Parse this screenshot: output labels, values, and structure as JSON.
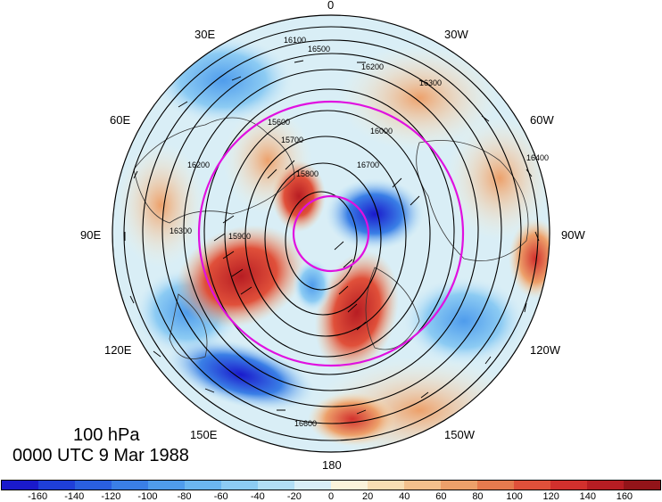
{
  "title": {
    "level": "100 hPa",
    "time": "0000 UTC 9 Mar 1988"
  },
  "longitude_labels": {
    "top": "0",
    "top_right": "30W",
    "upper_right": "60W",
    "right": "90W",
    "lower_right": "120W",
    "bottom_right": "150W",
    "bottom": "180",
    "bottom_left": "150E",
    "lower_left": "120E",
    "left": "90E",
    "upper_left": "60E",
    "top_left": "30E"
  },
  "contour_labels": [
    "16100",
    "16500",
    "16200",
    "16300",
    "16400",
    "16600",
    "15900",
    "16000",
    "16700",
    "15800",
    "15700",
    "15600",
    "16300",
    "16200"
  ],
  "colorbar": {
    "labels": [
      "-160",
      "-140",
      "-120",
      "-100",
      "-80",
      "-60",
      "-40",
      "-20",
      "0",
      "20",
      "40",
      "60",
      "80",
      "100",
      "120",
      "140",
      "160"
    ],
    "colors": [
      "#1a1acc",
      "#1f3fd9",
      "#2a5fe0",
      "#3a7fe6",
      "#4f9cec",
      "#6bb6f0",
      "#8ccbf3",
      "#b1def6",
      "#d8eef8",
      "#fbf3da",
      "#f8deb4",
      "#f3c08c",
      "#eda06a",
      "#e67a4e",
      "#e0503a",
      "#d2302d",
      "#b71d23",
      "#931419"
    ]
  },
  "overlay_colors": {
    "contours": "#000000",
    "circles": "#e010e0",
    "land_outline": "#333333"
  }
}
